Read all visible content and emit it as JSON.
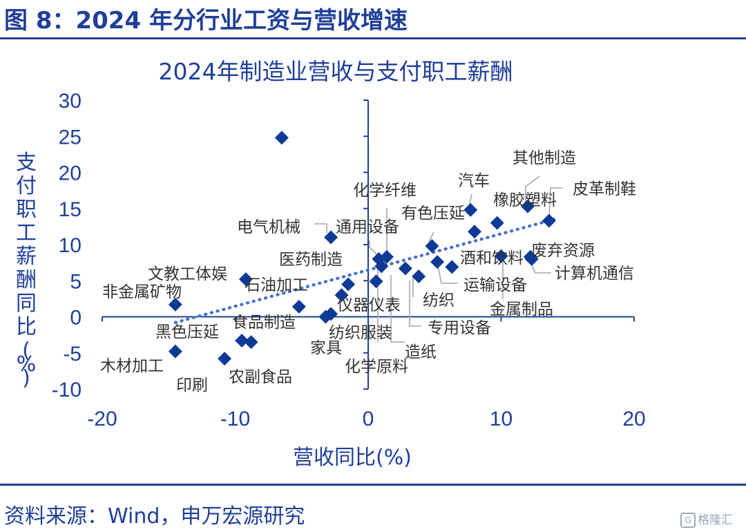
{
  "figure_title": "图 8：2024 年分行业工资与营收增速",
  "source": "资料来源：Wind，申万宏源研究",
  "watermark": "格隆汇",
  "colors": {
    "accent": "#1f3f99",
    "marker": "#0e3a96",
    "trendline": "#4a72c4",
    "leader": "#a6a6a6",
    "label": "#333333"
  },
  "chart_data": {
    "type": "scatter",
    "title": "2024年制造业营收与支付职工薪酬",
    "xlabel": "营收同比(%)",
    "ylabel": "支付职工薪酬同比(%)",
    "xlim": [
      -20,
      20
    ],
    "ylim": [
      -10,
      30
    ],
    "xticks": [
      "-20",
      "-10",
      "0",
      "10",
      "20"
    ],
    "yticks": [
      "30",
      "25",
      "20",
      "15",
      "10",
      "5",
      "0",
      "-5",
      "-10"
    ],
    "grid": false,
    "trendline": {
      "style": "dotted-linear",
      "from": [
        -14.5,
        -0.8
      ],
      "to": [
        14,
        13.5
      ]
    },
    "points": [
      {
        "label": "",
        "x": -6.5,
        "y": 24.8
      },
      {
        "label": "非金属矿物",
        "x": -14.5,
        "y": 1.7
      },
      {
        "label": "黑色压延",
        "x": -9.5,
        "y": -3.3
      },
      {
        "label": "木材加工",
        "x": -14.5,
        "y": -4.8
      },
      {
        "label": "印刷",
        "x": -10.8,
        "y": -5.8
      },
      {
        "label": "农副食品",
        "x": -8.8,
        "y": -3.5
      },
      {
        "label": "文教工体娱",
        "x": -9.2,
        "y": 5.2
      },
      {
        "label": "石油加工",
        "x": -5.2,
        "y": 1.4
      },
      {
        "label": "电气机械",
        "x": -2.8,
        "y": 11.0
      },
      {
        "label": "食品制造",
        "x": -3.2,
        "y": 0.0
      },
      {
        "label": "家具",
        "x": -2.8,
        "y": 0.4
      },
      {
        "label": "仪器仪表",
        "x": -2.0,
        "y": 3.0
      },
      {
        "label": "纺织服装",
        "x": -1.5,
        "y": 4.5
      },
      {
        "label": "医药制造",
        "x": 0.8,
        "y": 8.0
      },
      {
        "label": "化学原料",
        "x": 0.6,
        "y": 4.9
      },
      {
        "label": "通用设备",
        "x": 1.4,
        "y": 8.3
      },
      {
        "label": "化学纤维",
        "x": 1.0,
        "y": 7.0
      },
      {
        "label": "造纸",
        "x": 3.8,
        "y": 5.6
      },
      {
        "label": "专用设备",
        "x": 2.8,
        "y": 6.7
      },
      {
        "label": "有色压延",
        "x": 4.8,
        "y": 9.8
      },
      {
        "label": "纺织",
        "x": 5.2,
        "y": 7.6
      },
      {
        "label": "运输设备",
        "x": 6.3,
        "y": 6.9
      },
      {
        "label": "汽车",
        "x": 7.7,
        "y": 14.8
      },
      {
        "label": "酒和饮料",
        "x": 8.0,
        "y": 11.8
      },
      {
        "label": "金属制品",
        "x": 10.0,
        "y": 8.4
      },
      {
        "label": "橡胶塑料",
        "x": 9.7,
        "y": 13.0
      },
      {
        "label": "其他制造",
        "x": 12.0,
        "y": 15.3
      },
      {
        "label": "废弃资源",
        "x": 12.2,
        "y": 8.3
      },
      {
        "label": "计算机通信",
        "x": 12.3,
        "y": 8.0
      },
      {
        "label": "皮革制鞋",
        "x": 13.6,
        "y": 13.3
      }
    ]
  }
}
